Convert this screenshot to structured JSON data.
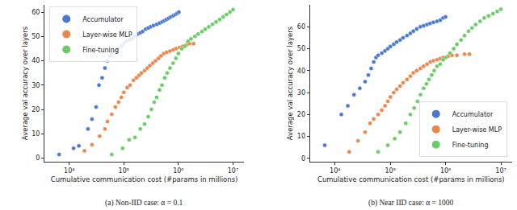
{
  "chart_data": [
    {
      "type": "scatter",
      "title": "(a) Non-IID case: α = 0.1",
      "x_label": "Cumulative communication cost (#params in millions)",
      "y_label": "Average val accuracy over layers",
      "log": "x",
      "grid": false,
      "legend": "upper left",
      "marker": "circle",
      "xlim": [
        3500,
        16000000
      ],
      "xticks": [
        {
          "value": 10000,
          "label": "10⁴"
        },
        {
          "value": 100000,
          "label": "10⁵"
        },
        {
          "value": 1000000,
          "label": "10⁶"
        },
        {
          "value": 10000000,
          "label": "10⁷"
        }
      ],
      "ylim": [
        -1.5,
        63
      ],
      "yticks": [
        0,
        10,
        20,
        30,
        40,
        50,
        60
      ],
      "series": [
        {
          "name": "Accumulator",
          "color": "#4878d0",
          "x": [
            6500,
            12000,
            15000,
            22000,
            26000,
            31000,
            35000,
            40000,
            45000,
            50000,
            55000,
            60000,
            70000,
            80000,
            90000,
            100000,
            110000,
            125000,
            140000,
            160000,
            180000,
            200000,
            220000,
            250000,
            280000,
            310000,
            350000,
            400000,
            450000,
            500000,
            550000,
            600000,
            660000,
            720000,
            800000,
            880000,
            950000,
            1020000
          ],
          "values": [
            1.5,
            4,
            5,
            12,
            16,
            21,
            30,
            33,
            37,
            40,
            42,
            43,
            44,
            45,
            46,
            47,
            48,
            48.5,
            49,
            50,
            51,
            51.5,
            52,
            53,
            53.5,
            54,
            54.5,
            55,
            55.5,
            56,
            56.5,
            57,
            57.5,
            58,
            58.5,
            59,
            59.5,
            60
          ]
        },
        {
          "name": "Layer-wise MLP",
          "color": "#ee854a",
          "x": [
            19000,
            26000,
            36000,
            45000,
            50000,
            60000,
            70000,
            80000,
            90000,
            100000,
            115000,
            130000,
            150000,
            170000,
            190000,
            210000,
            240000,
            270000,
            300000,
            340000,
            380000,
            430000,
            480000,
            540000,
            610000,
            700000,
            800000,
            900000,
            1050000,
            1200000,
            1400000,
            1600000,
            1900000
          ],
          "values": [
            3,
            5.5,
            9,
            12,
            15,
            18,
            21,
            23,
            25,
            27,
            29,
            30,
            32,
            33,
            34,
            35,
            36,
            37,
            38,
            39,
            40,
            41,
            42,
            43,
            43.5,
            44,
            44.5,
            45,
            45.5,
            46,
            46.5,
            47,
            47
          ]
        },
        {
          "name": "Fine-tuning",
          "color": "#6acc64",
          "x": [
            60000,
            95000,
            125000,
            160000,
            200000,
            240000,
            280000,
            320000,
            360000,
            400000,
            450000,
            500000,
            560000,
            620000,
            700000,
            800000,
            900000,
            1000000,
            1150000,
            1300000,
            1500000,
            1700000,
            2000000,
            2300000,
            2700000,
            3100000,
            3600000,
            4200000,
            4900000,
            5700000,
            6600000,
            7600000,
            8800000,
            10000000
          ],
          "values": [
            1.5,
            4,
            7.5,
            8.5,
            12,
            14,
            17,
            20,
            23,
            25,
            28,
            30,
            33,
            35,
            37,
            39,
            41,
            43,
            45,
            46,
            48,
            49,
            50,
            51,
            52,
            53,
            54,
            55,
            56,
            57,
            58,
            59,
            60,
            61
          ]
        }
      ]
    },
    {
      "type": "scatter",
      "title": "(b) Near IID case: α = 1000",
      "x_label": "Cumulative communication cost (#params in millions)",
      "y_label": "Average val accuracy over layers",
      "log": "x",
      "grid": false,
      "legend": "lower right",
      "marker": "circle",
      "xlim": [
        3500,
        16000000
      ],
      "xticks": [
        {
          "value": 10000,
          "label": "10⁴"
        },
        {
          "value": 100000,
          "label": "10⁵"
        },
        {
          "value": 1000000,
          "label": "10⁶"
        },
        {
          "value": 10000000,
          "label": "10⁷"
        }
      ],
      "ylim": [
        -1.5,
        70
      ],
      "yticks": [
        0,
        10,
        20,
        30,
        40,
        50,
        60
      ],
      "series": [
        {
          "name": "Accumulator",
          "color": "#4878d0",
          "x": [
            6500,
            13000,
            17000,
            22000,
            28000,
            35000,
            40000,
            45000,
            50000,
            55000,
            60000,
            70000,
            80000,
            90000,
            100000,
            115000,
            130000,
            150000,
            170000,
            200000,
            230000,
            260000,
            300000,
            350000,
            400000,
            460000,
            520000,
            600000,
            700000,
            800000,
            900000,
            1000000
          ],
          "values": [
            6,
            20,
            24,
            29,
            32,
            35,
            38,
            41,
            44,
            46,
            47,
            48,
            49,
            50,
            51,
            52,
            53,
            54,
            55,
            56,
            57,
            58,
            59,
            60,
            60.5,
            61,
            61.5,
            62,
            62.5,
            63,
            64,
            64.5
          ]
        },
        {
          "name": "Layer-wise MLP",
          "color": "#ee854a",
          "x": [
            18000,
            26000,
            35000,
            43000,
            50000,
            60000,
            70000,
            80000,
            90000,
            100000,
            115000,
            130000,
            150000,
            170000,
            200000,
            230000,
            260000,
            300000,
            350000,
            400000,
            460000,
            530000,
            600000,
            700000,
            800000,
            900000,
            1100000,
            1300000,
            1600000,
            2200000,
            2700000
          ],
          "values": [
            3,
            8,
            12,
            16,
            18,
            20,
            22,
            24,
            26,
            28,
            30,
            31.5,
            33,
            34.5,
            36,
            37.5,
            39,
            40,
            41,
            42,
            43,
            44,
            44.5,
            45,
            45.5,
            46,
            46.5,
            47,
            47,
            47.5,
            47.5
          ]
        },
        {
          "name": "Fine-tuning",
          "color": "#6acc64",
          "x": [
            60000,
            90000,
            120000,
            150000,
            190000,
            230000,
            270000,
            310000,
            350000,
            400000,
            450000,
            500000,
            560000,
            620000,
            700000,
            800000,
            900000,
            1000000,
            1200000,
            1400000,
            1600000,
            1900000,
            2200000,
            2600000,
            3000000,
            3500000,
            4200000,
            5000000,
            6000000,
            7200000,
            8600000,
            10000000
          ],
          "values": [
            3,
            6,
            9,
            12,
            16,
            20,
            23,
            26,
            29,
            32,
            34,
            36,
            38,
            40,
            42,
            43,
            45,
            46,
            48,
            50,
            52,
            54,
            56,
            58,
            59.5,
            61,
            62.5,
            64,
            65,
            66,
            67,
            68
          ]
        }
      ]
    }
  ]
}
